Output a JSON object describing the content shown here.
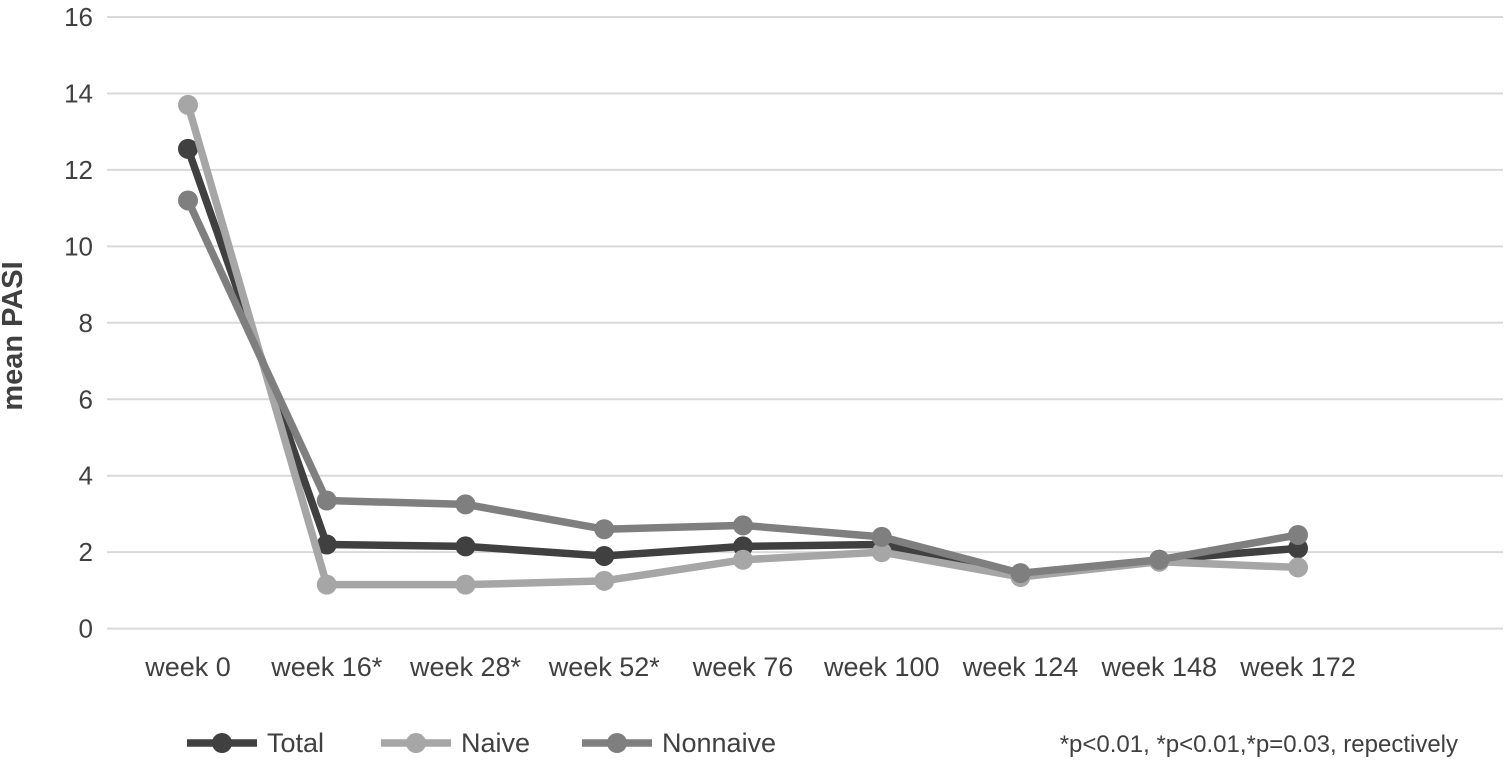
{
  "chart_data": {
    "type": "line",
    "title": "",
    "ylabel": "mean PASI",
    "xlabel": "",
    "ylim": [
      0,
      16
    ],
    "ytick_step": 2,
    "yticks": [
      16,
      14,
      12,
      10,
      8,
      6,
      4,
      2,
      0
    ],
    "grid": true,
    "legend_position": "bottom",
    "categories": [
      "week 0",
      "week 16*",
      "week 28*",
      "week 52*",
      "week 76",
      "week 100",
      "week 124",
      "week 148",
      "week 172"
    ],
    "series": [
      {
        "name": "Total",
        "color": "#404040",
        "values": [
          12.55,
          2.2,
          2.15,
          1.9,
          2.15,
          2.2,
          1.4,
          1.8,
          2.1
        ]
      },
      {
        "name": "Naive",
        "color": "#a6a6a6",
        "values": [
          13.7,
          1.15,
          1.15,
          1.25,
          1.8,
          2.0,
          1.35,
          1.75,
          1.6
        ]
      },
      {
        "name": "Nonnaive",
        "color": "#7f7f7f",
        "values": [
          11.2,
          3.35,
          3.25,
          2.6,
          2.7,
          2.4,
          1.45,
          1.8,
          2.45
        ]
      }
    ],
    "annotation": "*p<0.01, *p<0.01,*p=0.03, repectively",
    "marker": "circle",
    "colors": {
      "gridline": "#d9d9d9",
      "axis_text": "#404040",
      "background": "#ffffff"
    }
  }
}
